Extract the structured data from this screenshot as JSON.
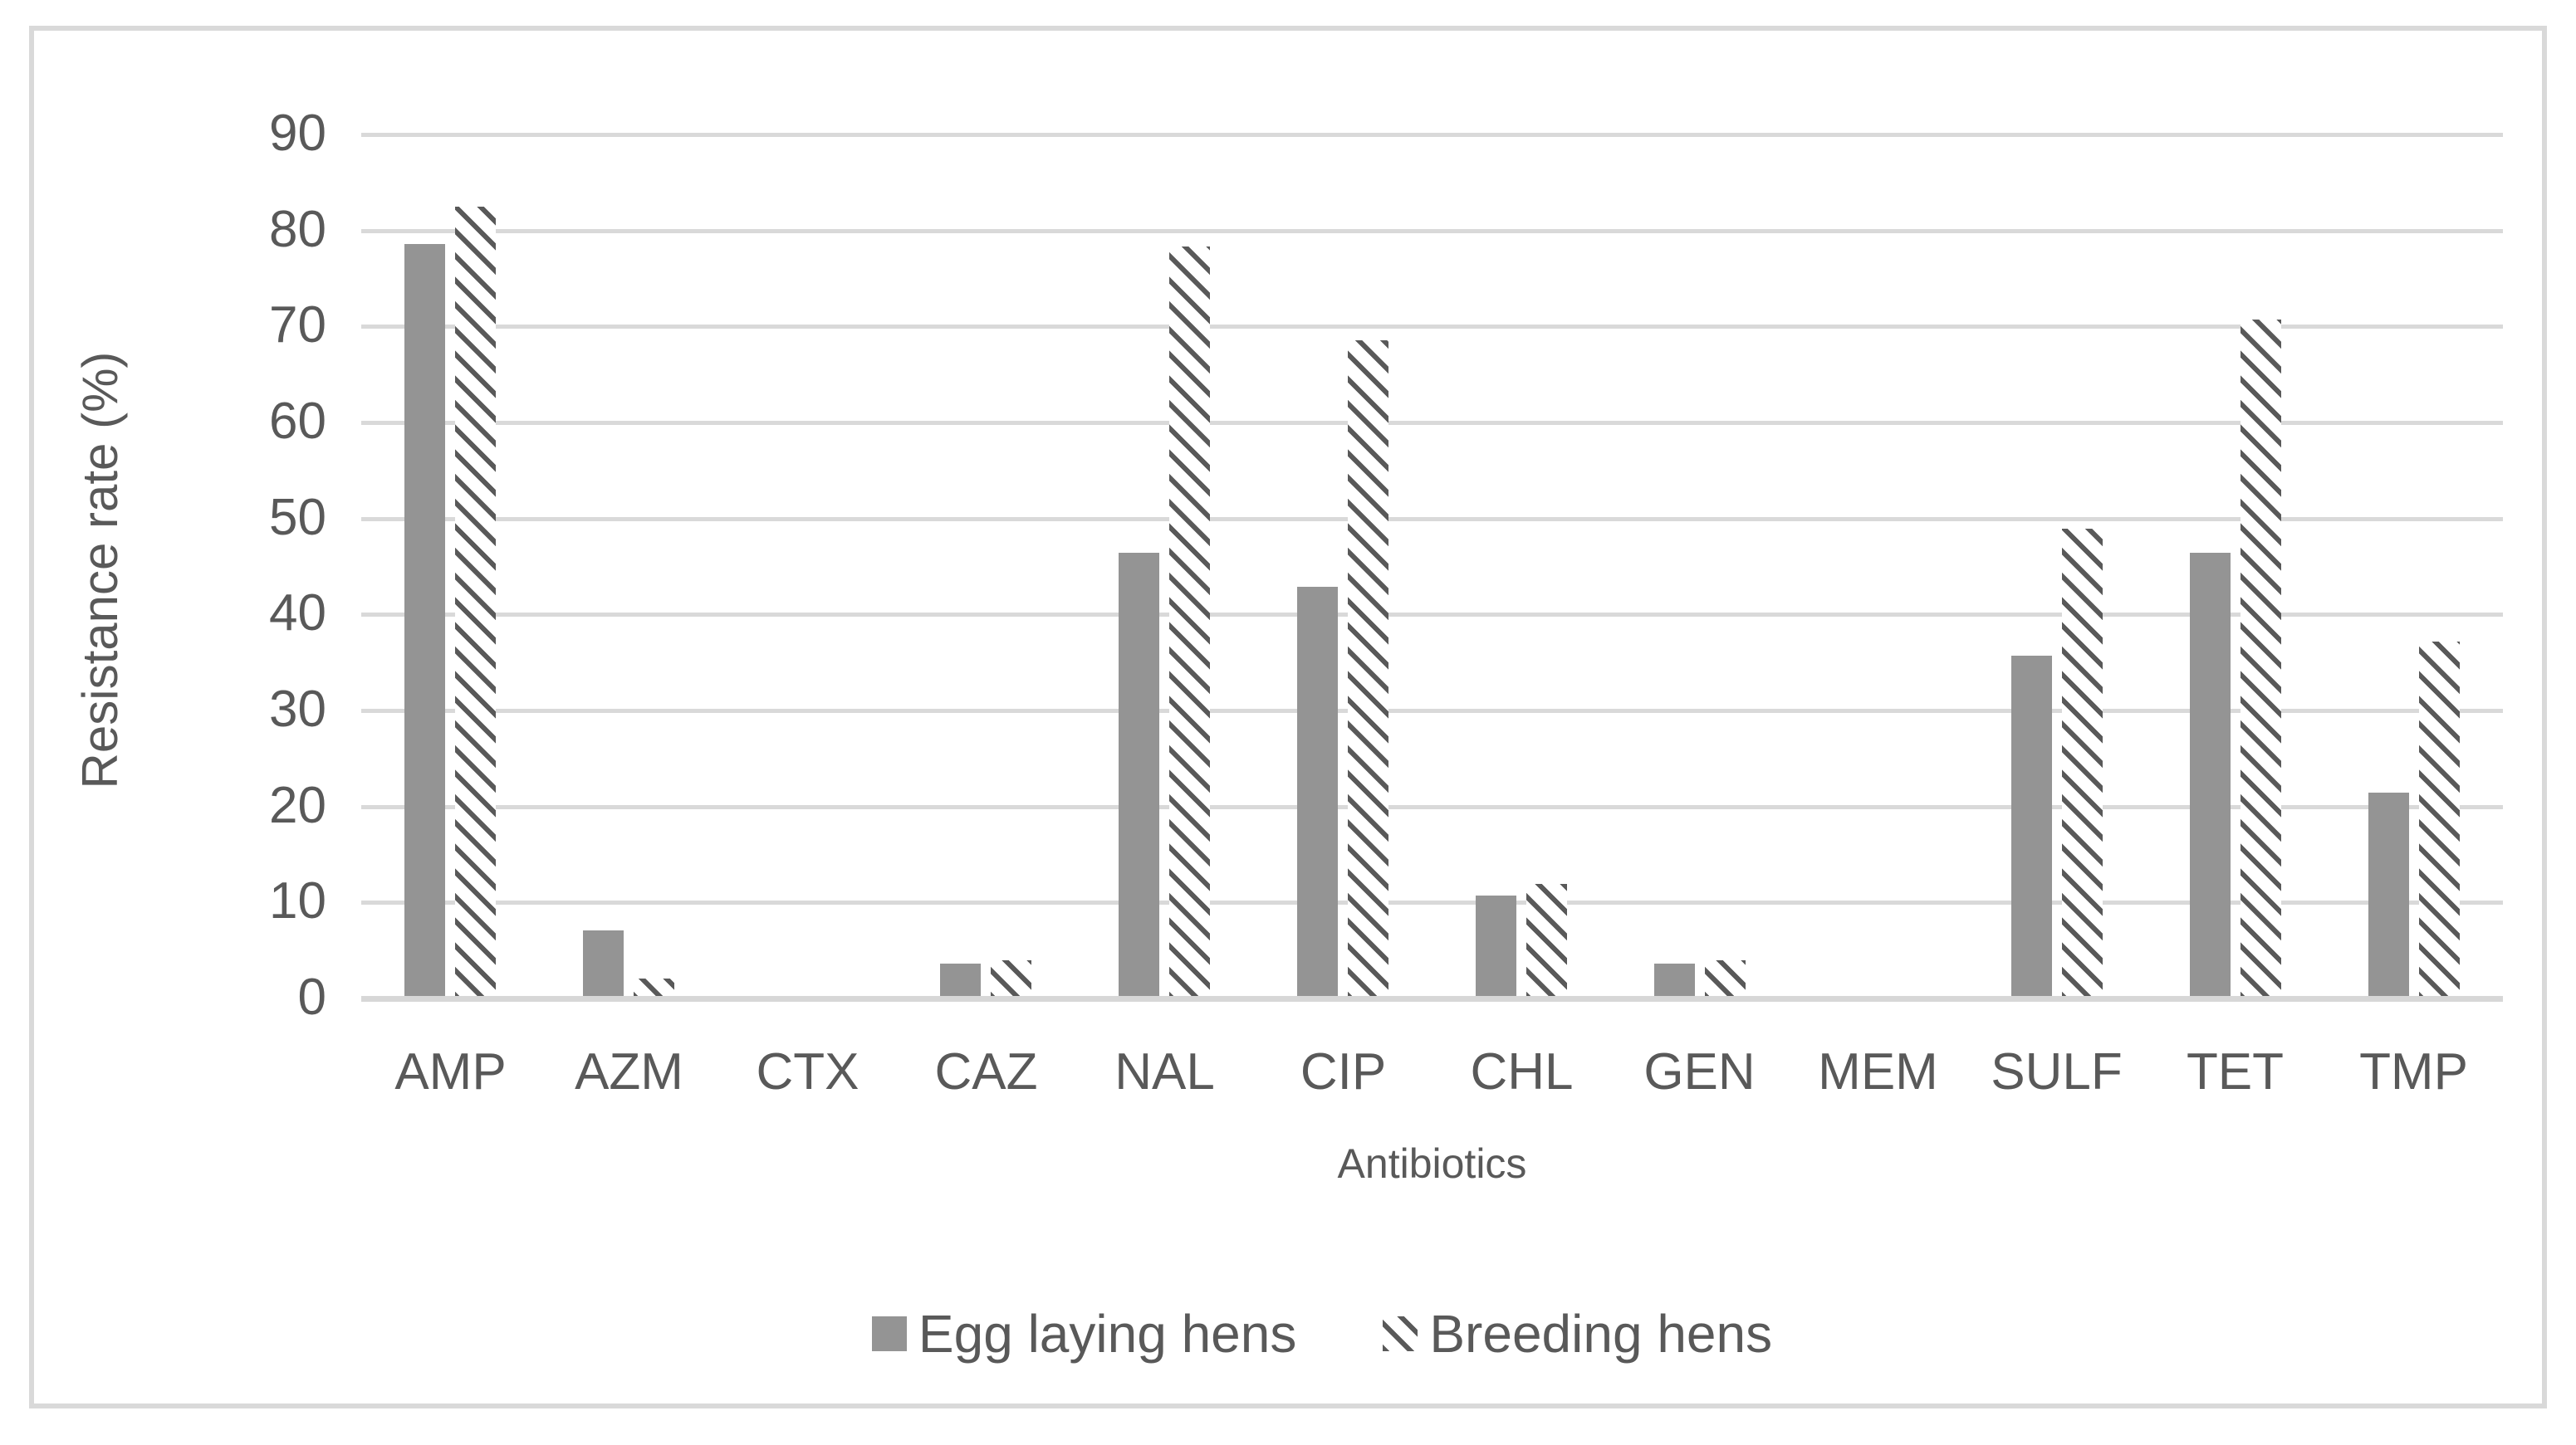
{
  "chart_data": {
    "type": "bar",
    "title": "",
    "xlabel": "Antibiotics",
    "ylabel": "Resistance rate (%)",
    "categories": [
      "AMP",
      "AZM",
      "CTX",
      "CAZ",
      "NAL",
      "CIP",
      "CHL",
      "GEN",
      "MEM",
      "SULF",
      "TET",
      "TMP"
    ],
    "series": [
      {
        "name": "Egg laying hens",
        "style": "solid",
        "color": "#949494",
        "values": [
          78.6,
          7.1,
          0,
          3.6,
          46.4,
          42.9,
          10.7,
          3.6,
          0,
          35.7,
          46.4,
          21.4
        ]
      },
      {
        "name": "Breeding hens",
        "style": "hatched",
        "color": "#595959",
        "values": [
          82.5,
          2.1,
          0,
          4.0,
          78.3,
          68.6,
          11.9,
          4.0,
          0,
          48.9,
          70.7,
          37.2
        ]
      }
    ],
    "ylim": [
      0,
      90
    ],
    "ytick_step": 10,
    "grid": true,
    "legend_position": "bottom",
    "colors": {
      "text": "#595959",
      "gridline": "#d9d9d9",
      "frame_border": "#d9d9d9",
      "solid_bar": "#949494",
      "hatch_stroke": "#595959",
      "background": "#ffffff"
    }
  }
}
